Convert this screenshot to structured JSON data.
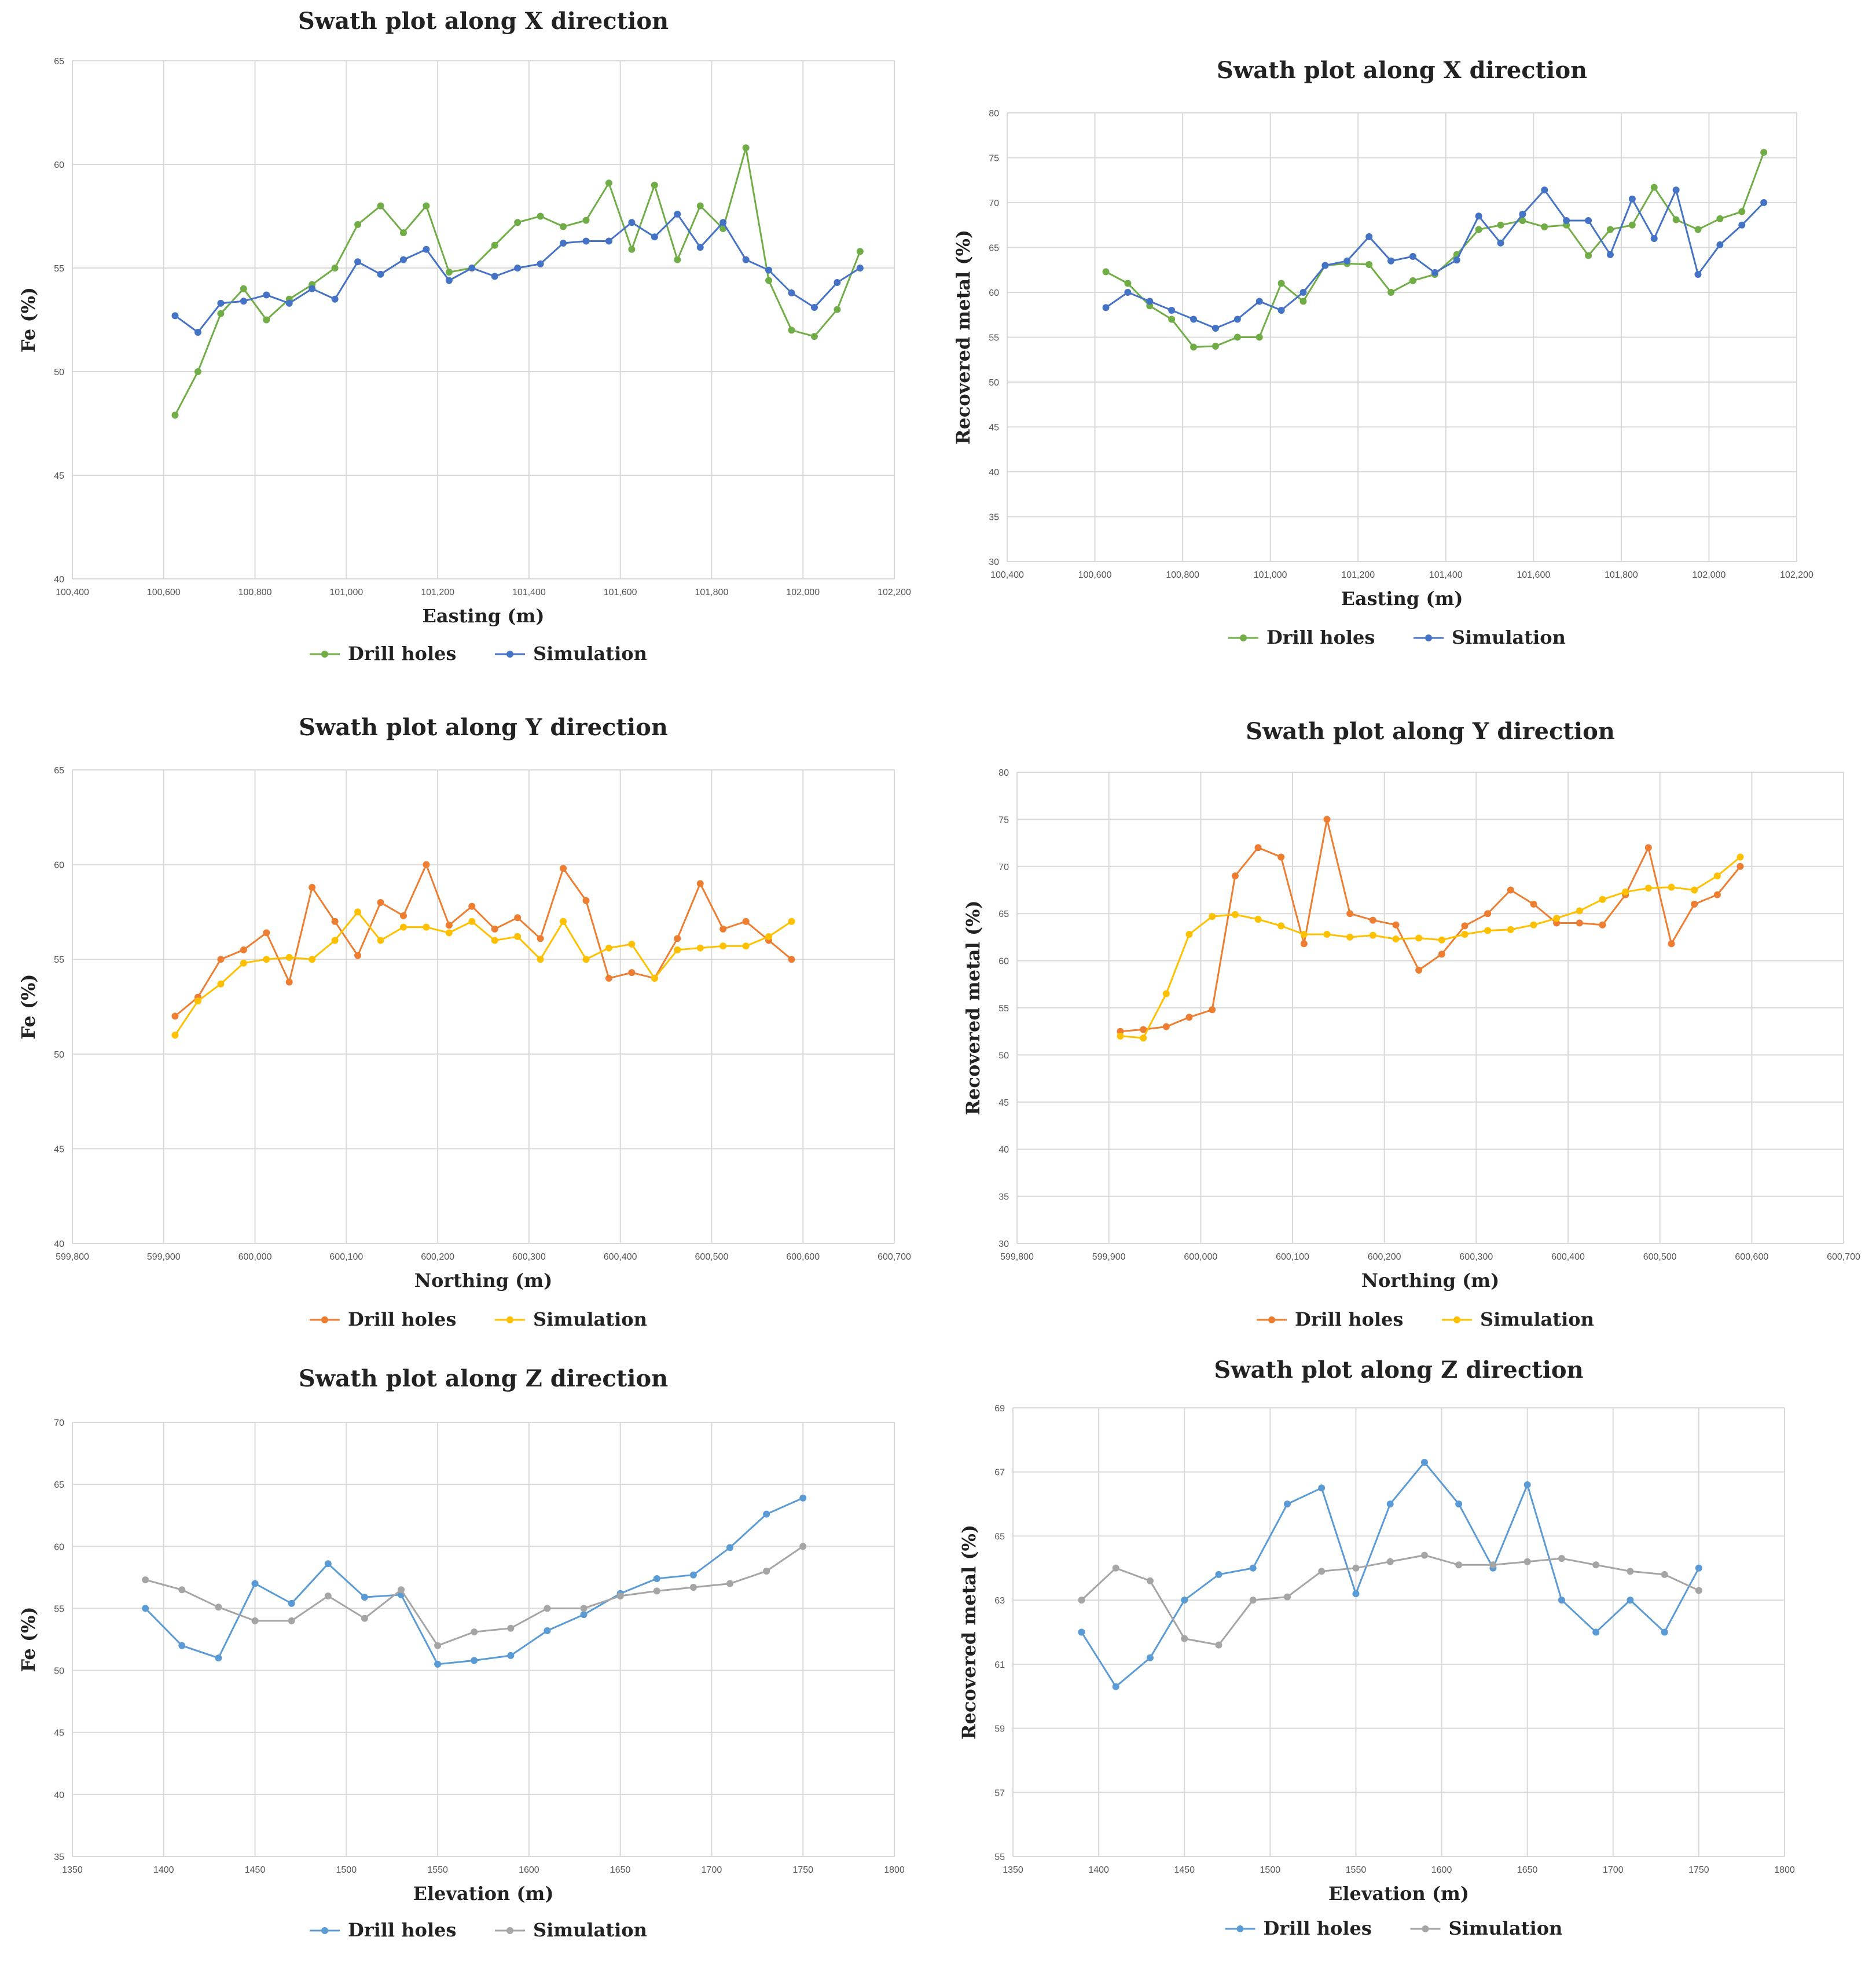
{
  "chart_data": [
    {
      "id": "fe-x",
      "type": "line",
      "title": "Swath plot along X direction",
      "xlabel": "Easting (m)",
      "ylabel": "Fe (%)",
      "xlim": [
        100400,
        102200
      ],
      "ylim": [
        40,
        65
      ],
      "xticks": [
        100400,
        100600,
        100800,
        101000,
        101200,
        101400,
        101600,
        101800,
        102000,
        102200
      ],
      "xtick_labels": [
        "100,400",
        "100,600",
        "100,800",
        "101,000",
        "101,200",
        "101,400",
        "101,600",
        "101,800",
        "102,000",
        "102,200"
      ],
      "yticks": [
        40,
        45,
        50,
        55,
        60,
        65
      ],
      "ytick_labels": [
        "40",
        "45",
        "50",
        "55",
        "60",
        "65"
      ],
      "legend": "bottom",
      "series": [
        {
          "name": "Drill holes",
          "color": "#70ad47",
          "x": [
            100625,
            100675,
            100725,
            100775,
            100825,
            100875,
            100925,
            100975,
            101025,
            101075,
            101125,
            101175,
            101225,
            101275,
            101325,
            101375,
            101425,
            101475,
            101525,
            101575,
            101625,
            101675,
            101725,
            101775,
            101825,
            101875,
            101925,
            101975,
            102025,
            102075,
            102125
          ],
          "y": [
            47.9,
            50.0,
            52.8,
            54.0,
            52.5,
            53.5,
            54.2,
            55.0,
            57.1,
            58.0,
            56.7,
            58.0,
            54.8,
            55.0,
            56.1,
            57.2,
            57.5,
            57.0,
            57.3,
            59.1,
            55.9,
            59.0,
            55.4,
            58.0,
            56.9,
            60.8,
            54.4,
            52.0,
            51.7,
            53.0,
            55.8
          ]
        },
        {
          "name": "Simulation",
          "color": "#4472c4",
          "x": [
            100625,
            100675,
            100725,
            100775,
            100825,
            100875,
            100925,
            100975,
            101025,
            101075,
            101125,
            101175,
            101225,
            101275,
            101325,
            101375,
            101425,
            101475,
            101525,
            101575,
            101625,
            101675,
            101725,
            101775,
            101825,
            101875,
            101925,
            101975,
            102025,
            102075,
            102125
          ],
          "y": [
            52.7,
            51.9,
            53.3,
            53.4,
            53.7,
            53.3,
            54.0,
            53.5,
            55.3,
            54.7,
            55.4,
            55.9,
            54.4,
            55.0,
            54.6,
            55.0,
            55.2,
            56.2,
            56.3,
            56.3,
            57.2,
            56.5,
            57.6,
            56.0,
            57.2,
            55.4,
            54.9,
            53.8,
            53.1,
            54.3,
            55.0
          ]
        }
      ]
    },
    {
      "id": "rm-x",
      "type": "line",
      "title": "Swath plot along X direction",
      "xlabel": "Easting (m)",
      "ylabel": "Recovered metal (%)",
      "xlim": [
        100400,
        102200
      ],
      "ylim": [
        30,
        80
      ],
      "xticks": [
        100400,
        100600,
        100800,
        101000,
        101200,
        101400,
        101600,
        101800,
        102000,
        102200
      ],
      "xtick_labels": [
        "100,400",
        "100,600",
        "100,800",
        "101,000",
        "101,200",
        "101,400",
        "101,600",
        "101,800",
        "102,000",
        "102,200"
      ],
      "yticks": [
        30,
        35,
        40,
        45,
        50,
        55,
        60,
        65,
        70,
        75,
        80
      ],
      "ytick_labels": [
        "30",
        "35",
        "40",
        "45",
        "50",
        "55",
        "60",
        "65",
        "70",
        "75",
        "80"
      ],
      "legend": "bottom",
      "series": [
        {
          "name": "Drill holes",
          "color": "#70ad47",
          "x": [
            100625,
            100675,
            100725,
            100775,
            100825,
            100875,
            100925,
            100975,
            101025,
            101075,
            101125,
            101175,
            101225,
            101275,
            101325,
            101375,
            101425,
            101475,
            101525,
            101575,
            101625,
            101675,
            101725,
            101775,
            101825,
            101875,
            101925,
            101975,
            102025,
            102075,
            102125
          ],
          "y": [
            62.3,
            61.0,
            58.5,
            57.0,
            53.9,
            54.0,
            55.0,
            55.0,
            61.0,
            59.0,
            63.0,
            63.2,
            63.1,
            60.0,
            61.3,
            62.0,
            64.2,
            67.0,
            67.5,
            68.0,
            67.3,
            67.5,
            64.1,
            67.0,
            67.5,
            71.7,
            68.1,
            67.0,
            68.2,
            69.0,
            75.6
          ]
        },
        {
          "name": "Simulation",
          "color": "#4472c4",
          "x": [
            100625,
            100675,
            100725,
            100775,
            100825,
            100875,
            100925,
            100975,
            101025,
            101075,
            101125,
            101175,
            101225,
            101275,
            101325,
            101375,
            101425,
            101475,
            101525,
            101575,
            101625,
            101675,
            101725,
            101775,
            101825,
            101875,
            101925,
            101975,
            102025,
            102075,
            102125
          ],
          "y": [
            58.3,
            60.0,
            59.0,
            58.0,
            57.0,
            56.0,
            57.0,
            59.0,
            58.0,
            60.0,
            63.0,
            63.5,
            66.2,
            63.5,
            64.0,
            62.2,
            63.6,
            68.5,
            65.5,
            68.7,
            71.4,
            68.0,
            68.0,
            64.2,
            70.4,
            66.0,
            71.4,
            62.0,
            65.3,
            67.5,
            70.0
          ]
        }
      ]
    },
    {
      "id": "fe-y",
      "type": "line",
      "title": "Swath plot along Y direction",
      "xlabel": "Northing (m)",
      "ylabel": "Fe (%)",
      "xlim": [
        599800,
        600700
      ],
      "ylim": [
        40,
        65
      ],
      "xticks": [
        599800,
        599900,
        600000,
        600100,
        600200,
        600300,
        600400,
        600500,
        600600,
        600700
      ],
      "xtick_labels": [
        "599,800",
        "599,900",
        "600,000",
        "600,100",
        "600,200",
        "600,300",
        "600,400",
        "600,500",
        "600,600",
        "600,700"
      ],
      "yticks": [
        40,
        45,
        50,
        55,
        60,
        65
      ],
      "ytick_labels": [
        "40",
        "45",
        "50",
        "55",
        "60",
        "65"
      ],
      "legend": "bottom",
      "series": [
        {
          "name": "Drill holes",
          "color": "#ed7d31",
          "x": [
            599912.5,
            599937.5,
            599962.5,
            599987.5,
            600012.5,
            600037.5,
            600062.5,
            600087.5,
            600112.5,
            600137.5,
            600162.5,
            600187.5,
            600212.5,
            600237.5,
            600262.5,
            600287.5,
            600312.5,
            600337.5,
            600362.5,
            600387.5,
            600412.5,
            600437.5,
            600462.5,
            600487.5,
            600512.5,
            600537.5,
            600562.5,
            600587.5
          ],
          "y": [
            52.0,
            53.0,
            55.0,
            55.5,
            56.4,
            53.8,
            58.8,
            57.0,
            55.2,
            58.0,
            57.3,
            60.0,
            56.8,
            57.8,
            56.6,
            57.2,
            56.1,
            59.8,
            58.1,
            54.0,
            54.3,
            54.0,
            56.1,
            59.0,
            56.6,
            57.0,
            56.0,
            55.0
          ]
        },
        {
          "name": "Simulation",
          "color": "#ffc000",
          "x": [
            599912.5,
            599937.5,
            599962.5,
            599987.5,
            600012.5,
            600037.5,
            600062.5,
            600087.5,
            600112.5,
            600137.5,
            600162.5,
            600187.5,
            600212.5,
            600237.5,
            600262.5,
            600287.5,
            600312.5,
            600337.5,
            600362.5,
            600387.5,
            600412.5,
            600437.5,
            600462.5,
            600487.5,
            600512.5,
            600537.5,
            600562.5,
            600587.5
          ],
          "y": [
            51.0,
            52.8,
            53.7,
            54.8,
            55.0,
            55.1,
            55.0,
            56.0,
            57.5,
            56.0,
            56.7,
            56.7,
            56.4,
            57.0,
            56.0,
            56.2,
            55.0,
            57.0,
            55.0,
            55.6,
            55.8,
            54.0,
            55.5,
            55.6,
            55.7,
            55.7,
            56.2,
            57.0
          ]
        }
      ]
    },
    {
      "id": "rm-y",
      "type": "line",
      "title": "Swath plot along Y direction",
      "xlabel": "Northing (m)",
      "ylabel": "Recovered metal (%)",
      "xlim": [
        599800,
        600700
      ],
      "ylim": [
        30,
        80
      ],
      "xticks": [
        599800,
        599900,
        600000,
        600100,
        600200,
        600300,
        600400,
        600500,
        600600,
        600700
      ],
      "xtick_labels": [
        "599,800",
        "599,900",
        "600,000",
        "600,100",
        "600,200",
        "600,300",
        "600,400",
        "600,500",
        "600,600",
        "600,700"
      ],
      "yticks": [
        30,
        35,
        40,
        45,
        50,
        55,
        60,
        65,
        70,
        75,
        80
      ],
      "ytick_labels": [
        "30",
        "35",
        "40",
        "45",
        "50",
        "55",
        "60",
        "65",
        "70",
        "75",
        "80"
      ],
      "legend": "bottom",
      "series": [
        {
          "name": "Drill holes",
          "color": "#ed7d31",
          "x": [
            599912.5,
            599937.5,
            599962.5,
            599987.5,
            600012.5,
            600037.5,
            600062.5,
            600087.5,
            600112.5,
            600137.5,
            600162.5,
            600187.5,
            600212.5,
            600237.5,
            600262.5,
            600287.5,
            600312.5,
            600337.5,
            600362.5,
            600387.5,
            600412.5,
            600437.5,
            600462.5,
            600487.5,
            600512.5,
            600537.5,
            600562.5,
            600587.5
          ],
          "y": [
            52.5,
            52.7,
            53.0,
            54.0,
            54.8,
            69.0,
            72.0,
            71.0,
            61.8,
            75.0,
            65.0,
            64.3,
            63.8,
            59.0,
            60.7,
            63.7,
            65.0,
            67.5,
            66.0,
            64.0,
            64.0,
            63.8,
            67.0,
            72.0,
            61.8,
            66.0,
            67.0,
            70.0
          ]
        },
        {
          "name": "Simulation",
          "color": "#ffc000",
          "x": [
            599912.5,
            599937.5,
            599962.5,
            599987.5,
            600012.5,
            600037.5,
            600062.5,
            600087.5,
            600112.5,
            600137.5,
            600162.5,
            600187.5,
            600212.5,
            600237.5,
            600262.5,
            600287.5,
            600312.5,
            600337.5,
            600362.5,
            600387.5,
            600412.5,
            600437.5,
            600462.5,
            600487.5,
            600512.5,
            600537.5,
            600562.5,
            600587.5
          ],
          "y": [
            52.0,
            51.8,
            56.5,
            62.8,
            64.7,
            64.9,
            64.4,
            63.7,
            62.8,
            62.8,
            62.5,
            62.7,
            62.3,
            62.4,
            62.2,
            62.8,
            63.2,
            63.3,
            63.8,
            64.5,
            65.3,
            66.5,
            67.3,
            67.7,
            67.8,
            67.5,
            69.0,
            71.0
          ]
        }
      ]
    },
    {
      "id": "fe-z",
      "type": "line",
      "title": "Swath plot along Z direction",
      "xlabel": "Elevation (m)",
      "ylabel": "Fe (%)",
      "xlim": [
        1350,
        1800
      ],
      "ylim": [
        35,
        70
      ],
      "xticks": [
        1350,
        1400,
        1450,
        1500,
        1550,
        1600,
        1650,
        1700,
        1750,
        1800
      ],
      "xtick_labels": [
        "1350",
        "1400",
        "1450",
        "1500",
        "1550",
        "1600",
        "1650",
        "1700",
        "1750",
        "1800"
      ],
      "yticks": [
        35,
        40,
        45,
        50,
        55,
        60,
        65,
        70
      ],
      "ytick_labels": [
        "35",
        "40",
        "45",
        "50",
        "55",
        "60",
        "65",
        "70"
      ],
      "legend": "bottom",
      "series": [
        {
          "name": "Drill holes",
          "color": "#5b9bd5",
          "x": [
            1390,
            1410,
            1430,
            1450,
            1470,
            1490,
            1510,
            1530,
            1550,
            1570,
            1590,
            1610,
            1630,
            1650,
            1670,
            1690,
            1710,
            1730,
            1750
          ],
          "y": [
            55.0,
            52.0,
            51.0,
            57.0,
            55.4,
            58.6,
            55.9,
            56.1,
            50.5,
            50.8,
            51.2,
            53.2,
            54.5,
            56.2,
            57.4,
            57.7,
            59.9,
            62.6,
            63.9
          ]
        },
        {
          "name": "Simulation",
          "color": "#a5a5a5",
          "x": [
            1390,
            1410,
            1430,
            1450,
            1470,
            1490,
            1510,
            1530,
            1550,
            1570,
            1590,
            1610,
            1630,
            1650,
            1670,
            1690,
            1710,
            1730,
            1750
          ],
          "y": [
            57.3,
            56.5,
            55.1,
            54.0,
            54.0,
            56.0,
            54.2,
            56.5,
            52.0,
            53.1,
            53.4,
            55.0,
            55.0,
            56.0,
            56.4,
            56.7,
            57.0,
            58.0,
            60.0
          ]
        }
      ]
    },
    {
      "id": "rm-z",
      "type": "line",
      "title": "Swath plot along Z direction",
      "xlabel": "Elevation (m)",
      "ylabel": "Recovered metal (%)",
      "xlim": [
        1350,
        1800
      ],
      "ylim": [
        55,
        69
      ],
      "xticks": [
        1350,
        1400,
        1450,
        1500,
        1550,
        1600,
        1650,
        1700,
        1750,
        1800
      ],
      "xtick_labels": [
        "1350",
        "1400",
        "1450",
        "1500",
        "1550",
        "1600",
        "1650",
        "1700",
        "1750",
        "1800"
      ],
      "yticks": [
        55,
        57,
        59,
        61,
        63,
        65,
        67,
        69
      ],
      "ytick_labels": [
        "55",
        "57",
        "59",
        "61",
        "63",
        "65",
        "67",
        "69"
      ],
      "legend": "bottom",
      "series": [
        {
          "name": "Drill holes",
          "color": "#5b9bd5",
          "x": [
            1390,
            1410,
            1430,
            1450,
            1470,
            1490,
            1510,
            1530,
            1550,
            1570,
            1590,
            1610,
            1630,
            1650,
            1670,
            1690,
            1710,
            1730,
            1750
          ],
          "y": [
            62.0,
            60.3,
            61.2,
            63.0,
            63.8,
            64.0,
            66.0,
            66.5,
            63.2,
            66.0,
            67.3,
            66.0,
            64.0,
            66.6,
            63.0,
            62.0,
            63.0,
            62.0,
            64.0
          ]
        },
        {
          "name": "Simulation",
          "color": "#a5a5a5",
          "x": [
            1390,
            1410,
            1430,
            1450,
            1470,
            1490,
            1510,
            1530,
            1550,
            1570,
            1590,
            1610,
            1630,
            1650,
            1670,
            1690,
            1710,
            1730,
            1750
          ],
          "y": [
            63.0,
            64.0,
            63.6,
            61.8,
            61.6,
            63.0,
            63.1,
            63.9,
            64.0,
            64.2,
            64.4,
            64.1,
            64.1,
            64.2,
            64.3,
            64.1,
            63.9,
            63.8,
            63.3
          ]
        }
      ]
    }
  ]
}
